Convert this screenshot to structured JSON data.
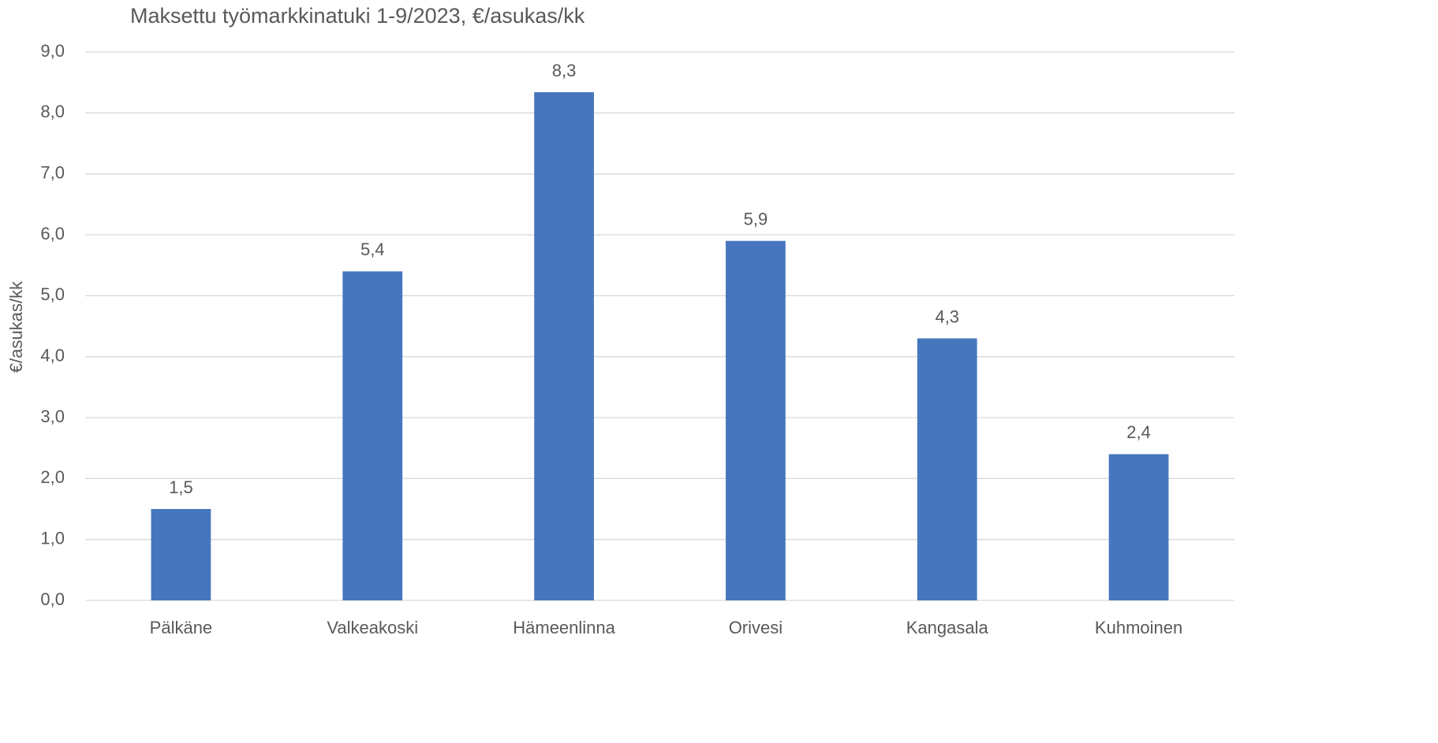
{
  "chart_data": {
    "type": "bar",
    "title": "Maksettu työmarkkinatuki 1-9/2023, €/asukas/kk",
    "y_label": "€/asukas/kk",
    "categories": [
      "Pälkäne",
      "Valkeakoski",
      "Hämeenlinna",
      "Orivesi",
      "Kangasala",
      "Kuhmoinen"
    ],
    "values": [
      1.5,
      5.4,
      8.34,
      5.9,
      4.3,
      2.4
    ],
    "value_labels": [
      "1,5",
      "5,4",
      "8,3",
      "5,9",
      "4,3",
      "2,4"
    ],
    "color": "#4677be",
    "ylim": [
      0,
      9
    ],
    "yticks": [
      {
        "value": 0,
        "label": "0,0"
      },
      {
        "value": 1,
        "label": "1,0"
      },
      {
        "value": 2,
        "label": "2,0"
      },
      {
        "value": 3,
        "label": "3,0"
      },
      {
        "value": 4,
        "label": "4,0"
      },
      {
        "value": 5,
        "label": "5,0"
      },
      {
        "value": 6,
        "label": "6,0"
      },
      {
        "value": 7,
        "label": "7,0"
      },
      {
        "value": 8,
        "label": "8,0"
      },
      {
        "value": 9,
        "label": "9,0"
      }
    ],
    "grid": true
  }
}
